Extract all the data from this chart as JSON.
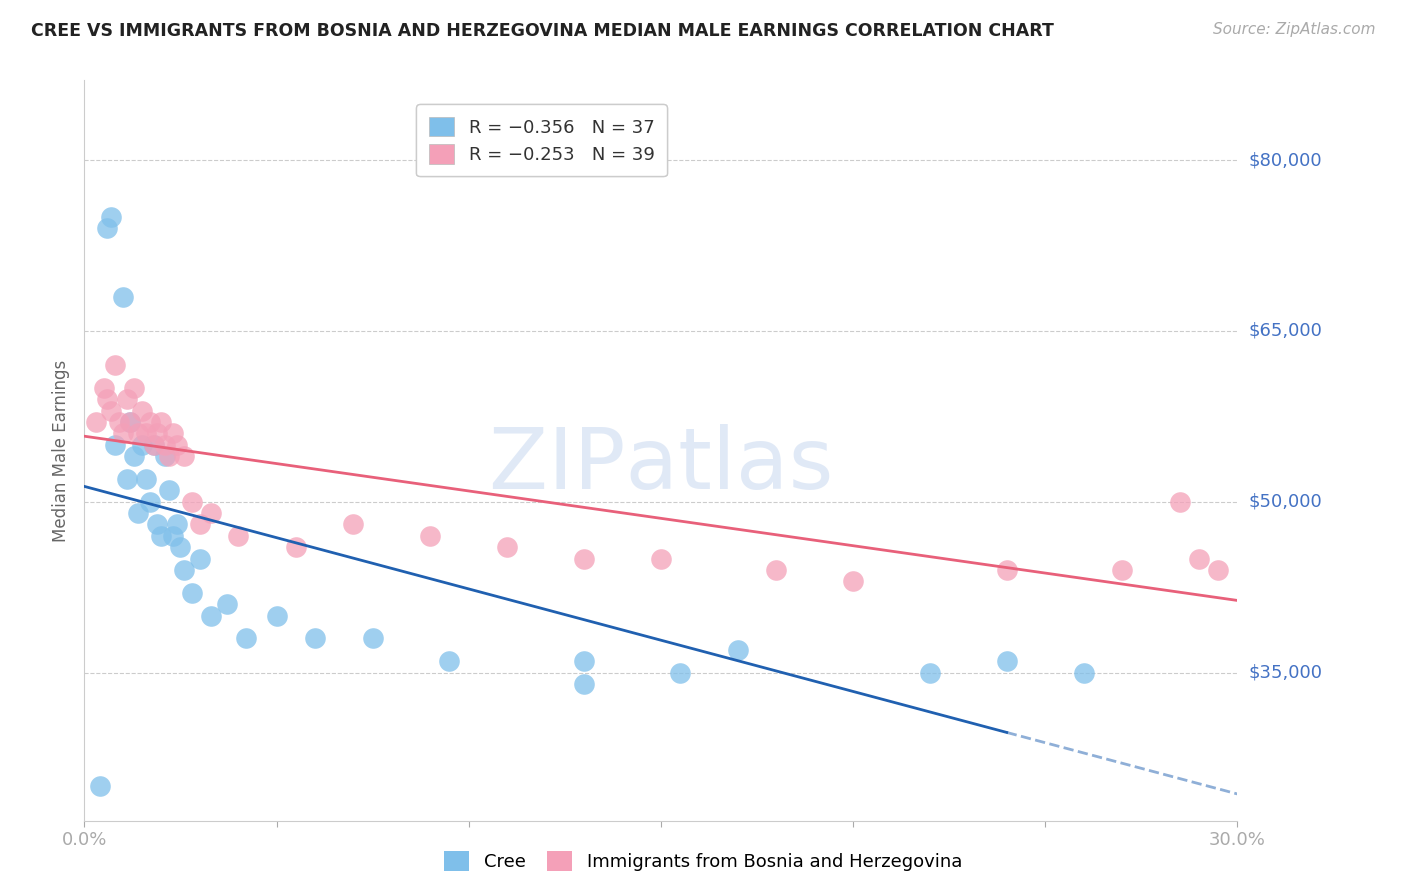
{
  "title": "CREE VS IMMIGRANTS FROM BOSNIA AND HERZEGOVINA MEDIAN MALE EARNINGS CORRELATION CHART",
  "source": "Source: ZipAtlas.com",
  "ylabel": "Median Male Earnings",
  "y_ticks": [
    35000,
    50000,
    65000,
    80000
  ],
  "y_tick_labels": [
    "$35,000",
    "$50,000",
    "$65,000",
    "$80,000"
  ],
  "xlim": [
    0.0,
    0.3
  ],
  "ylim": [
    22000,
    87000
  ],
  "cree_color": "#7fbfea",
  "bosnia_color": "#f4a0b8",
  "cree_line_color": "#2060b0",
  "bosnia_line_color": "#e8607a",
  "cree_x": [
    0.004,
    0.006,
    0.007,
    0.008,
    0.01,
    0.011,
    0.012,
    0.013,
    0.014,
    0.015,
    0.016,
    0.017,
    0.018,
    0.019,
    0.02,
    0.021,
    0.022,
    0.023,
    0.024,
    0.025,
    0.026,
    0.028,
    0.03,
    0.033,
    0.037,
    0.042,
    0.05,
    0.06,
    0.075,
    0.095,
    0.13,
    0.155,
    0.17,
    0.22,
    0.24,
    0.26,
    0.13
  ],
  "cree_y": [
    25000,
    74000,
    75000,
    55000,
    68000,
    52000,
    57000,
    54000,
    49000,
    55000,
    52000,
    50000,
    55000,
    48000,
    47000,
    54000,
    51000,
    47000,
    48000,
    46000,
    44000,
    42000,
    45000,
    40000,
    41000,
    38000,
    40000,
    38000,
    38000,
    36000,
    36000,
    35000,
    37000,
    35000,
    36000,
    35000,
    34000
  ],
  "bosnia_x": [
    0.003,
    0.005,
    0.006,
    0.007,
    0.008,
    0.009,
    0.01,
    0.011,
    0.012,
    0.013,
    0.014,
    0.015,
    0.016,
    0.017,
    0.018,
    0.019,
    0.02,
    0.021,
    0.022,
    0.023,
    0.024,
    0.026,
    0.028,
    0.03,
    0.033,
    0.04,
    0.055,
    0.07,
    0.09,
    0.11,
    0.13,
    0.15,
    0.18,
    0.2,
    0.24,
    0.27,
    0.285,
    0.29,
    0.295
  ],
  "bosnia_y": [
    57000,
    60000,
    59000,
    58000,
    62000,
    57000,
    56000,
    59000,
    57000,
    60000,
    56000,
    58000,
    56000,
    57000,
    55000,
    56000,
    57000,
    55000,
    54000,
    56000,
    55000,
    54000,
    50000,
    48000,
    49000,
    47000,
    46000,
    48000,
    47000,
    46000,
    45000,
    45000,
    44000,
    43000,
    44000,
    44000,
    50000,
    45000,
    44000
  ],
  "legend_labels_bottom": [
    "Cree",
    "Immigrants from Bosnia and Herzegovina"
  ],
  "legend_r_cree": "R = −0.356   N = 37",
  "legend_r_bosnia": "R = −0.253   N = 39",
  "watermark_text": "ZIPAtlas",
  "xlabel_ticks": [
    0.0,
    0.05,
    0.1,
    0.15,
    0.2,
    0.25,
    0.3
  ],
  "xlabel_labels": [
    "0.0%",
    "",
    "",
    "",
    "",
    "",
    "30.0%"
  ]
}
